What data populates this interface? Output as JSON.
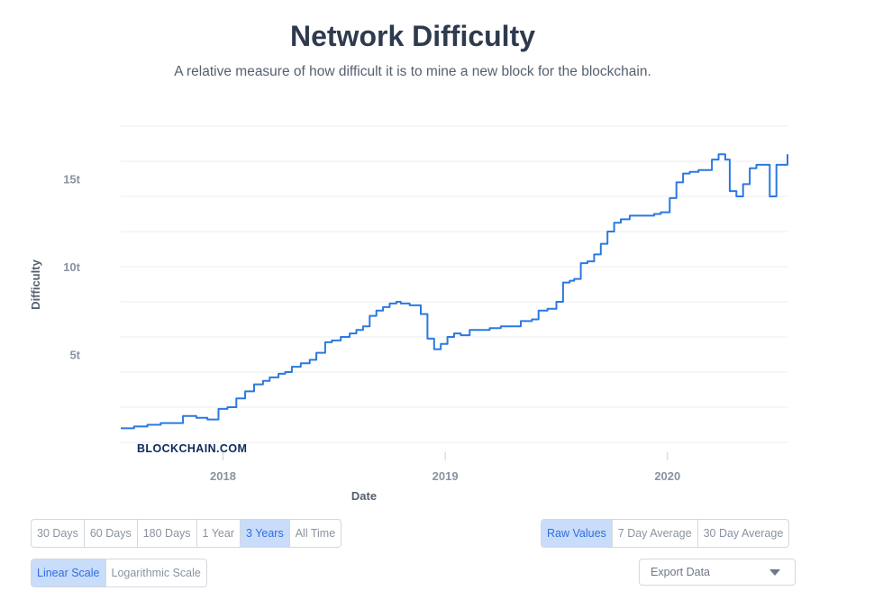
{
  "header": {
    "title": "Network Difficulty",
    "subtitle": "A relative measure of how difficult it is to mine a new block for the blockchain."
  },
  "watermark": "BLOCKCHAIN.COM",
  "colors": {
    "line": "#2a79e0",
    "grid": "#eceef1",
    "active_bg": "#c9dcf9",
    "active_text": "#2f6fe0"
  },
  "range_buttons": [
    {
      "label": "30 Days",
      "active": false
    },
    {
      "label": "60 Days",
      "active": false
    },
    {
      "label": "180 Days",
      "active": false
    },
    {
      "label": "1 Year",
      "active": false
    },
    {
      "label": "3 Years",
      "active": true
    },
    {
      "label": "All Time",
      "active": false
    }
  ],
  "value_buttons": [
    {
      "label": "Raw Values",
      "active": true
    },
    {
      "label": "7 Day Average",
      "active": false
    },
    {
      "label": "30 Day Average",
      "active": false
    }
  ],
  "scale_buttons": [
    {
      "label": "Linear Scale",
      "active": true
    },
    {
      "label": "Logarithmic Scale",
      "active": false
    }
  ],
  "export": {
    "label": "Export Data",
    "icon": "chevron-down-icon"
  },
  "chart_data": {
    "type": "line",
    "title": "Network Difficulty",
    "xlabel": "Date",
    "ylabel": "Difficulty",
    "xlim": [
      2017.54,
      2020.54
    ],
    "ylim": [
      0,
      18
    ],
    "x_ticks": [
      {
        "value": 2018,
        "label": "2018"
      },
      {
        "value": 2019,
        "label": "2019"
      },
      {
        "value": 2020,
        "label": "2020"
      }
    ],
    "y_ticks": [
      {
        "value": 5,
        "label": "5t"
      },
      {
        "value": 10,
        "label": "10t"
      },
      {
        "value": 15,
        "label": "15t"
      }
    ],
    "grid": true,
    "series": [
      {
        "x": [
          2017.54,
          2017.6,
          2017.66,
          2017.72,
          2017.82,
          2017.88,
          2017.93,
          2017.98,
          2018.02,
          2018.06,
          2018.1,
          2018.14,
          2018.18,
          2018.21,
          2018.25,
          2018.28,
          2018.31,
          2018.35,
          2018.39,
          2018.42,
          2018.46,
          2018.49,
          2018.53,
          2018.57,
          2018.6,
          2018.63,
          2018.66,
          2018.69,
          2018.72,
          2018.75,
          2018.78,
          2018.8,
          2018.84,
          2018.89,
          2018.92,
          2018.95,
          2018.98,
          2019.01,
          2019.04,
          2019.07,
          2019.11,
          2019.15,
          2019.2,
          2019.25,
          2019.3,
          2019.34,
          2019.39,
          2019.42,
          2019.46,
          2019.5,
          2019.53,
          2019.56,
          2019.58,
          2019.61,
          2019.64,
          2019.67,
          2019.7,
          2019.73,
          2019.76,
          2019.79,
          2019.83,
          2019.87,
          2019.91,
          2019.94,
          2019.97,
          2020.01,
          2020.04,
          2020.07,
          2020.1,
          2020.14,
          2020.17,
          2020.2,
          2020.23,
          2020.26,
          2020.28,
          2020.31,
          2020.34,
          2020.37,
          2020.4,
          2020.43,
          2020.46,
          2020.49,
          2020.52,
          2020.54
        ],
        "y": [
          0.8,
          0.9,
          1.0,
          1.1,
          1.5,
          1.4,
          1.3,
          1.9,
          2.0,
          2.5,
          2.9,
          3.3,
          3.5,
          3.7,
          3.9,
          4.0,
          4.3,
          4.5,
          4.7,
          5.1,
          5.7,
          5.8,
          6.0,
          6.2,
          6.4,
          6.6,
          7.2,
          7.5,
          7.7,
          7.9,
          8.0,
          7.9,
          7.8,
          7.3,
          5.9,
          5.3,
          5.6,
          6.0,
          6.2,
          6.1,
          6.4,
          6.4,
          6.5,
          6.6,
          6.6,
          6.9,
          7.0,
          7.5,
          7.6,
          8.0,
          9.1,
          9.2,
          9.3,
          10.2,
          10.3,
          10.7,
          11.3,
          12.0,
          12.5,
          12.7,
          12.9,
          12.9,
          12.9,
          13.0,
          13.1,
          13.9,
          14.8,
          15.3,
          15.4,
          15.5,
          15.5,
          16.1,
          16.4,
          16.1,
          14.3,
          14.0,
          14.7,
          15.6,
          15.8,
          15.8,
          14.0,
          15.8,
          15.8,
          16.4
        ]
      }
    ]
  }
}
